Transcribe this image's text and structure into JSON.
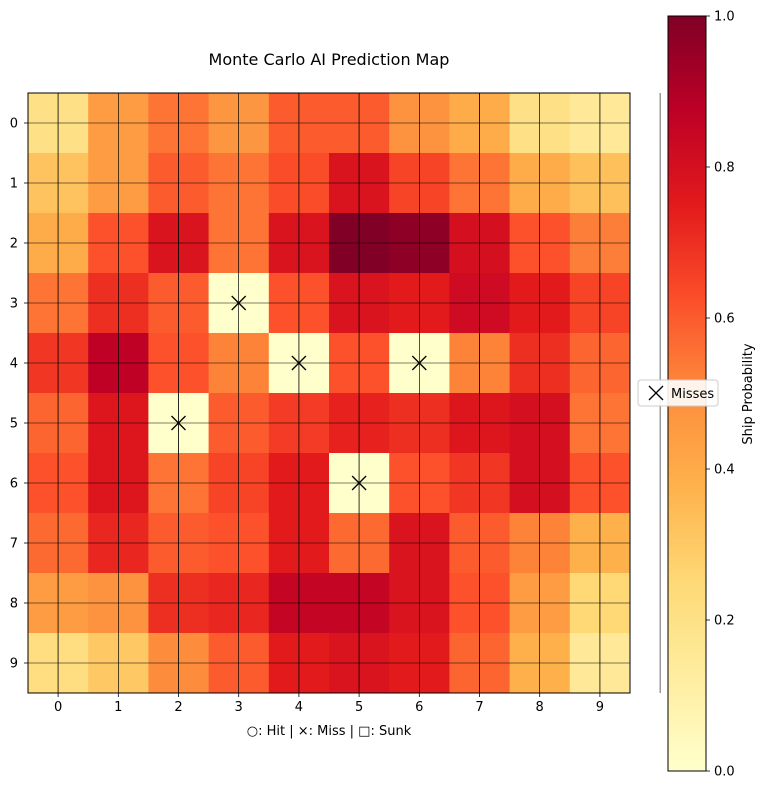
{
  "chart_data": {
    "type": "heatmap",
    "title": "Monte Carlo AI Prediction Map",
    "xlabel": "○: Hit | ×: Miss | □: Sunk",
    "ylabel": "",
    "x_ticks": [
      "0",
      "1",
      "2",
      "3",
      "4",
      "5",
      "6",
      "7",
      "8",
      "9"
    ],
    "y_ticks": [
      "0",
      "1",
      "2",
      "3",
      "4",
      "5",
      "6",
      "7",
      "8",
      "9"
    ],
    "values": [
      [
        0.2,
        0.45,
        0.55,
        0.47,
        0.6,
        0.6,
        0.48,
        0.4,
        0.2,
        0.15
      ],
      [
        0.32,
        0.45,
        0.6,
        0.55,
        0.63,
        0.78,
        0.65,
        0.55,
        0.4,
        0.33
      ],
      [
        0.4,
        0.62,
        0.78,
        0.55,
        0.78,
        1.0,
        0.97,
        0.8,
        0.62,
        0.53
      ],
      [
        0.55,
        0.7,
        0.6,
        0.0,
        0.62,
        0.78,
        0.75,
        0.82,
        0.75,
        0.65
      ],
      [
        0.68,
        0.87,
        0.62,
        0.52,
        0.0,
        0.62,
        0.0,
        0.52,
        0.7,
        0.58
      ],
      [
        0.58,
        0.77,
        0.0,
        0.6,
        0.67,
        0.73,
        0.7,
        0.77,
        0.8,
        0.55
      ],
      [
        0.62,
        0.77,
        0.55,
        0.65,
        0.75,
        0.0,
        0.62,
        0.68,
        0.8,
        0.62
      ],
      [
        0.57,
        0.72,
        0.6,
        0.62,
        0.75,
        0.57,
        0.78,
        0.6,
        0.52,
        0.38
      ],
      [
        0.45,
        0.48,
        0.7,
        0.72,
        0.85,
        0.85,
        0.78,
        0.62,
        0.45,
        0.25
      ],
      [
        0.22,
        0.3,
        0.5,
        0.6,
        0.75,
        0.78,
        0.75,
        0.58,
        0.38,
        0.15
      ]
    ],
    "markers": [
      {
        "row": 3,
        "col": 3,
        "type": "miss"
      },
      {
        "row": 4,
        "col": 4,
        "type": "miss"
      },
      {
        "row": 4,
        "col": 6,
        "type": "miss"
      },
      {
        "row": 5,
        "col": 2,
        "type": "miss"
      },
      {
        "row": 6,
        "col": 5,
        "type": "miss"
      }
    ],
    "colorbar": {
      "label": "Ship Probability",
      "ticks": [
        "0.0",
        "0.2",
        "0.4",
        "0.6",
        "0.8",
        "1.0"
      ],
      "range": [
        0,
        1
      ],
      "colormap": "YlOrRd"
    },
    "legend": {
      "marker": "×",
      "label": "Misses",
      "placement": "right"
    },
    "grid": true
  }
}
